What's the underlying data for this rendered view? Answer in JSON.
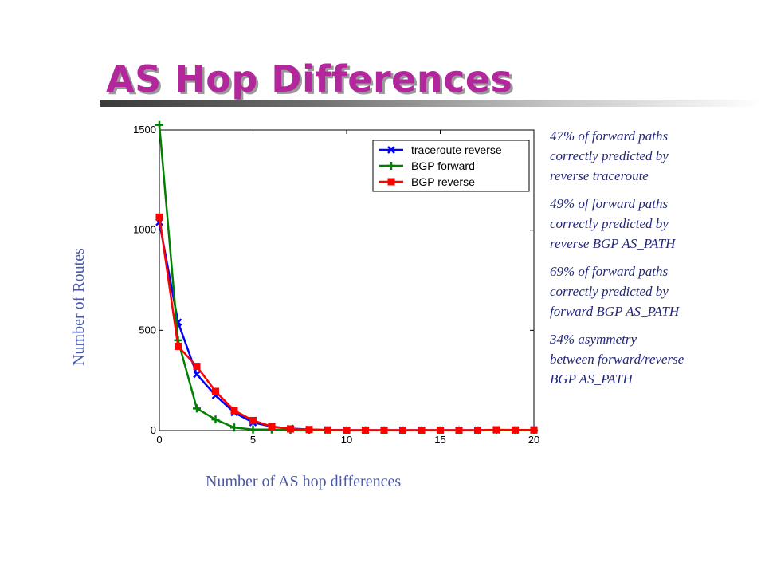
{
  "slide": {
    "title": "AS Hop Differences",
    "notes": [
      "47% of forward paths\ncorrectly predicted by\nreverse traceroute",
      "49% of forward paths\ncorrectly predicted by\nreverse BGP AS_PATH",
      "69% of forward paths\ncorrectly predicted by\nforward BGP AS_PATH",
      "34% asymmetry\nbetween forward/reverse\nBGP AS_PATH"
    ]
  },
  "chart_data": {
    "type": "line",
    "title": "",
    "xlabel": "Number of AS hop differences",
    "ylabel": "Number of Routes",
    "xlim": [
      0,
      20
    ],
    "ylim": [
      0,
      1500
    ],
    "xticks": [
      0,
      5,
      10,
      15,
      20
    ],
    "yticks": [
      0,
      500,
      1000,
      1500
    ],
    "grid": false,
    "legend_position": "top-right",
    "x": [
      0,
      1,
      2,
      3,
      4,
      5,
      6,
      7,
      8,
      9,
      10,
      11,
      12,
      13,
      14,
      15,
      16,
      17,
      18,
      19,
      20
    ],
    "series": [
      {
        "name": "traceroute reverse",
        "color": "#0000ff",
        "marker": "x",
        "values": [
          1040,
          540,
          280,
          175,
          90,
          40,
          20,
          10,
          5,
          3,
          2,
          2,
          2,
          2,
          2,
          2,
          2,
          2,
          3,
          2,
          3
        ]
      },
      {
        "name": "BGP forward",
        "color": "#008000",
        "marker": "+",
        "values": [
          1525,
          450,
          110,
          55,
          15,
          5,
          5,
          2,
          2,
          1,
          1,
          1,
          1,
          1,
          1,
          1,
          1,
          1,
          1,
          1,
          1
        ]
      },
      {
        "name": "BGP reverse",
        "color": "#ff0000",
        "marker": "square",
        "values": [
          1065,
          420,
          320,
          195,
          100,
          50,
          20,
          8,
          5,
          3,
          2,
          2,
          2,
          2,
          2,
          2,
          2,
          2,
          4,
          3,
          3
        ]
      }
    ]
  }
}
